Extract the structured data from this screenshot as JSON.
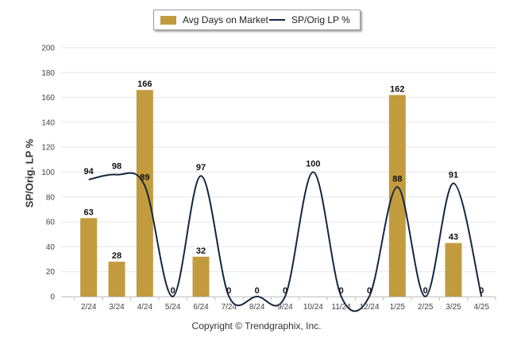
{
  "chart_data": {
    "type": "bar",
    "categories": [
      "2/24",
      "3/24",
      "4/24",
      "5/24",
      "6/24",
      "7/24",
      "8/24",
      "9/24",
      "10/24",
      "11/24",
      "12/24",
      "1/25",
      "2/25",
      "3/25",
      "4/25"
    ],
    "series": [
      {
        "name": "Avg Days on Market",
        "type": "bar",
        "color": "#c29b3f",
        "values": [
          63,
          28,
          166,
          0,
          32,
          0,
          0,
          0,
          0,
          0,
          0,
          162,
          0,
          43,
          0
        ],
        "labels": [
          "63",
          "28",
          "166",
          "",
          "32",
          "",
          "",
          "",
          "",
          "",
          "",
          "162",
          "",
          "43",
          ""
        ]
      },
      {
        "name": "SP/Orig LP %",
        "type": "line",
        "color": "#13273f",
        "values": [
          94,
          98,
          89,
          0,
          97,
          0,
          0,
          0,
          100,
          0,
          0,
          88,
          0,
          91,
          0
        ]
      }
    ],
    "ylabel": "SP/Orig. LP %",
    "ylim": [
      0,
      200
    ],
    "yticks": [
      0,
      20,
      40,
      60,
      80,
      100,
      120,
      140,
      160,
      180,
      200
    ],
    "grid": true,
    "legend": "top-center"
  },
  "footer": {
    "copyright": "Copyright © Trendgraphix, Inc."
  }
}
